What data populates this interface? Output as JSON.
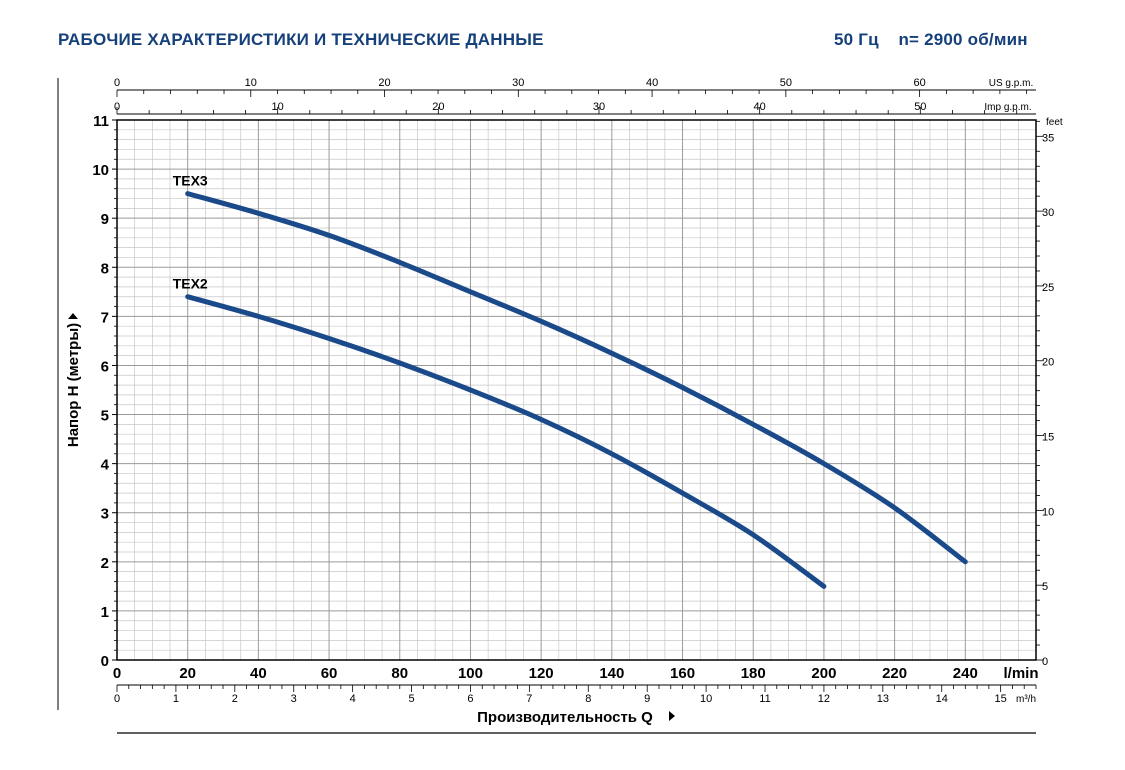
{
  "header": {
    "title": "РАБОЧИЕ ХАРАКТЕРИСТИКИ И ТЕХНИЧЕСКИЕ ДАННЫЕ",
    "frequency": "50 Гц",
    "speed": "n= 2900 об/мин"
  },
  "colors": {
    "curve": "#1b4a8a",
    "title": "#15407a",
    "grid_major": "#9a9a9a",
    "grid_minor": "#c8c8c8",
    "axis": "#000000"
  },
  "chart_data": {
    "type": "line",
    "xlabel": "Производительность Q",
    "ylabel": "Напор H (метры)",
    "x_unit": "l/min",
    "xlim": [
      0,
      260
    ],
    "ylim": [
      0,
      11
    ],
    "x_ticks": [
      "0",
      "20",
      "40",
      "60",
      "80",
      "100",
      "120",
      "140",
      "160",
      "180",
      "200",
      "220",
      "240"
    ],
    "y_ticks": [
      "0",
      "1",
      "2",
      "3",
      "4",
      "5",
      "6",
      "7",
      "8",
      "9",
      "10",
      "11"
    ],
    "grid": true,
    "secondary_axes": {
      "us_gpm": {
        "label": "US g.p.m.",
        "ticks": [
          "0",
          "10",
          "20",
          "30",
          "40",
          "50",
          "60"
        ],
        "max": 68.7
      },
      "imp_gpm": {
        "label": "Imp g.p.m.",
        "ticks": [
          "0",
          "10",
          "20",
          "30",
          "40",
          "50"
        ],
        "max": 57.2
      },
      "m3h": {
        "label": "m³/h",
        "ticks": [
          "0",
          "1",
          "2",
          "3",
          "4",
          "5",
          "6",
          "7",
          "8",
          "9",
          "10",
          "11",
          "12",
          "13",
          "14",
          "15"
        ],
        "max": 15.6
      },
      "feet": {
        "label": "feet",
        "ticks": [
          "0",
          "5",
          "10",
          "15",
          "20",
          "25",
          "30",
          "35"
        ],
        "max": 36.09
      }
    },
    "series": [
      {
        "name": "TEX3",
        "x": [
          20,
          40,
          60,
          80,
          100,
          120,
          140,
          160,
          180,
          200,
          220,
          240
        ],
        "y": [
          9.5,
          9.1,
          8.65,
          8.1,
          7.5,
          6.9,
          6.25,
          5.55,
          4.8,
          4.0,
          3.1,
          2.0
        ]
      },
      {
        "name": "TEX2",
        "x": [
          20,
          40,
          60,
          80,
          100,
          120,
          140,
          160,
          180,
          200
        ],
        "y": [
          7.4,
          7.0,
          6.55,
          6.05,
          5.5,
          4.9,
          4.2,
          3.4,
          2.55,
          1.5
        ]
      }
    ]
  }
}
